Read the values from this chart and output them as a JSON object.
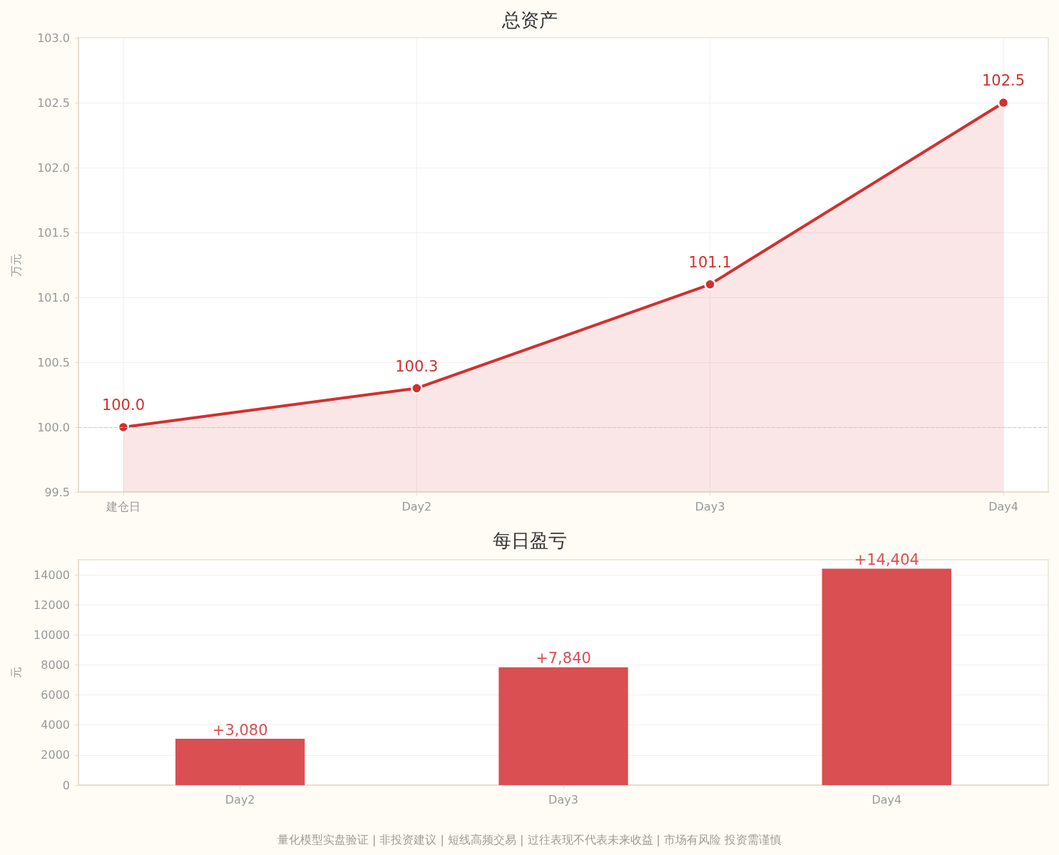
{
  "chart_data": [
    {
      "type": "area",
      "title": "总资产",
      "ylabel": "万元",
      "categories": [
        "建仓日",
        "Day2",
        "Day3",
        "Day4"
      ],
      "series": [
        {
          "color": "#d32f2f",
          "values": [
            100.0,
            100.3,
            101.1,
            102.5
          ],
          "value_labels": [
            "100.0",
            "100.3",
            "101.1",
            "102.5"
          ]
        }
      ],
      "ylim": [
        99.5,
        103
      ],
      "yticks": [
        {
          "value": 99.5,
          "label": "99.5"
        },
        {
          "value": 100,
          "label": "100.0"
        },
        {
          "value": 100.5,
          "label": "100.5"
        },
        {
          "value": 101,
          "label": "101.0"
        },
        {
          "value": 101.5,
          "label": "101.5"
        },
        {
          "value": 102,
          "label": "102.0"
        },
        {
          "value": 102.5,
          "label": "102.5"
        },
        {
          "value": 103,
          "label": "103.0"
        }
      ],
      "ref_lines": [
        {
          "axis": "y",
          "value": 100,
          "color": "#c8c8c8",
          "line_style": "dashed"
        }
      ],
      "grid": true,
      "marker": "circle"
    },
    {
      "type": "bar",
      "title": "每日盈亏",
      "ylabel": "元",
      "categories": [
        "Day2",
        "Day3",
        "Day4"
      ],
      "series": [
        {
          "color": "#d94f52",
          "values": [
            3080,
            7840,
            14404
          ],
          "value_labels": [
            "+3,080",
            "+7,840",
            "+14,404"
          ]
        }
      ],
      "ylim": [
        0,
        15000
      ],
      "yticks": [
        0,
        2000,
        4000,
        6000,
        8000,
        10000,
        12000,
        14000
      ],
      "grid": "y",
      "annotations": [
        "量化模型实盘验证 | 非投资建议 | 短线高频交易 | 过往表现不代表未来收益 | 市场有风险 投资需谨慎"
      ]
    }
  ]
}
